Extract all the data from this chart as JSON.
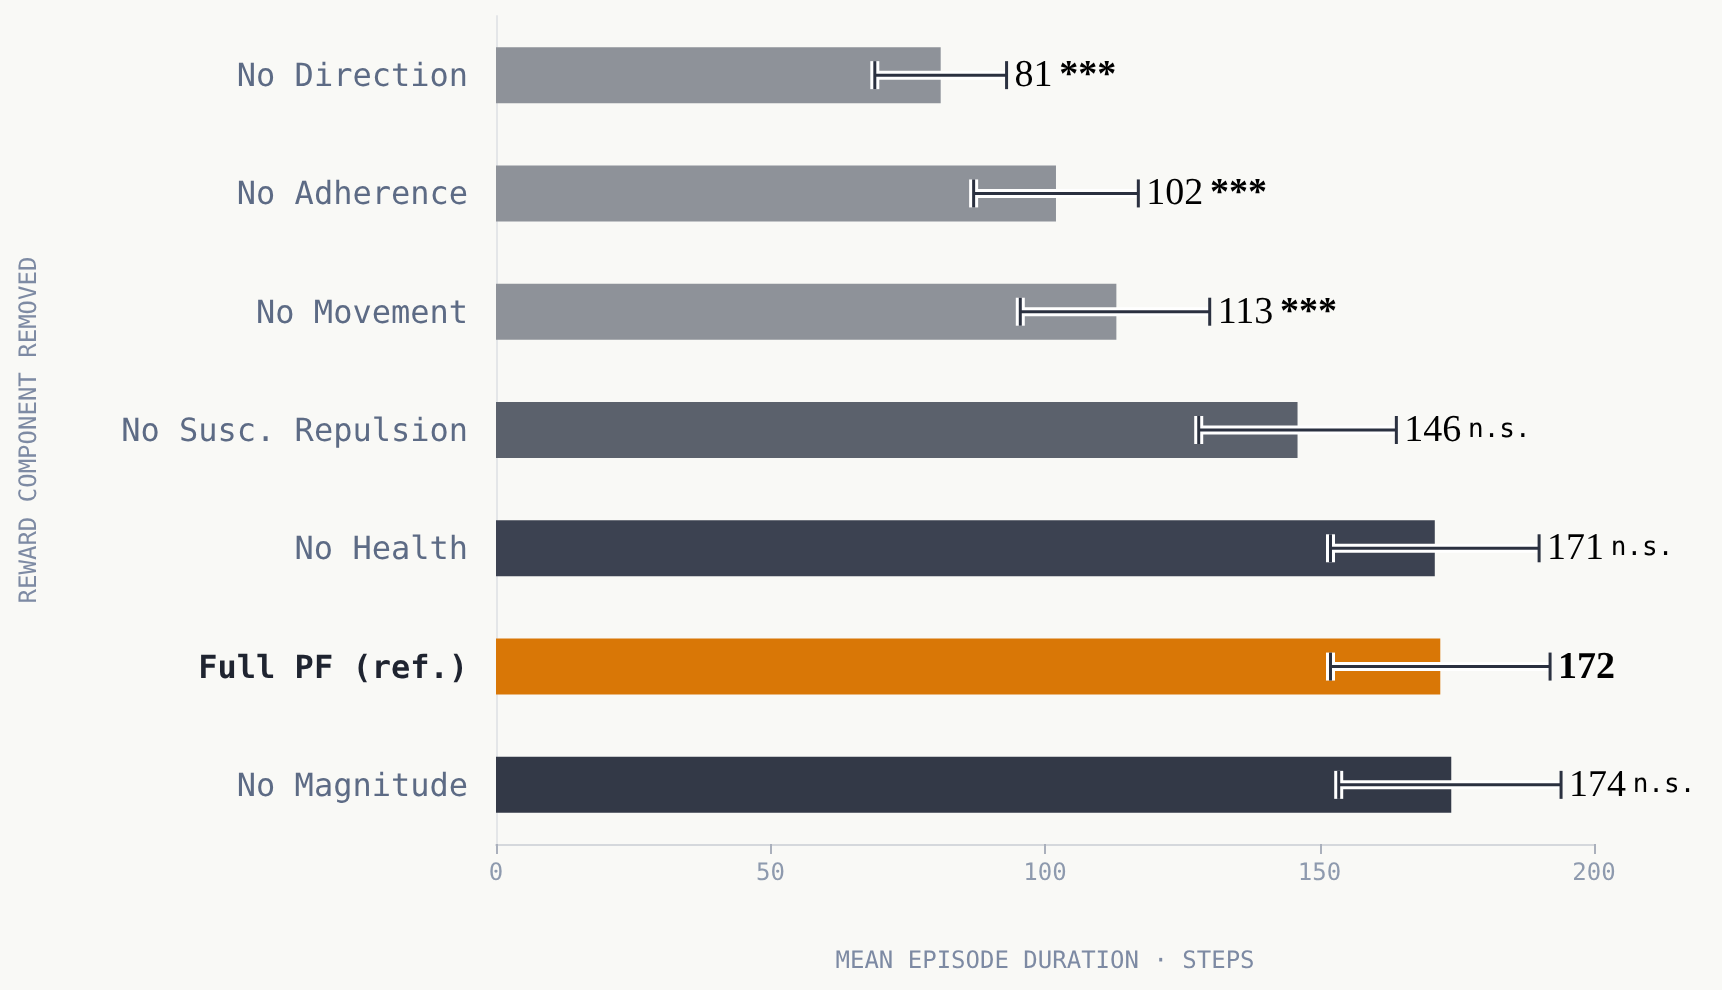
{
  "chart_data": {
    "type": "bar",
    "orientation": "horizontal",
    "xlabel": "MEAN EPISODE DURATION · STEPS",
    "ylabel": "REWARD COMPONENT REMOVED",
    "categories": [
      "No Direction",
      "No Adherence",
      "No Movement",
      "No Susc. Repulsion",
      "No Health",
      "Full PF (ref.)",
      "No Magnitude"
    ],
    "values": [
      81,
      102,
      113,
      146,
      171,
      172,
      174
    ],
    "colors": [
      "#8e9299",
      "#8e9299",
      "#8e9299",
      "#5b616c",
      "#3c4251",
      "#d97706",
      "#333947"
    ],
    "errors": [
      [
        69,
        93
      ],
      [
        87,
        117
      ],
      [
        95.5,
        130
      ],
      [
        128,
        164
      ],
      [
        152,
        190
      ],
      [
        152,
        192
      ],
      [
        153.5,
        194
      ]
    ],
    "value_labels": [
      "81 ***",
      "102 ***",
      "113 ***",
      "146 n.s.",
      "171 n.s.",
      "172",
      "174 n.s."
    ],
    "xlim": [
      0,
      200
    ],
    "xticks": [
      0,
      50,
      100,
      150,
      200
    ],
    "grid": false
  }
}
